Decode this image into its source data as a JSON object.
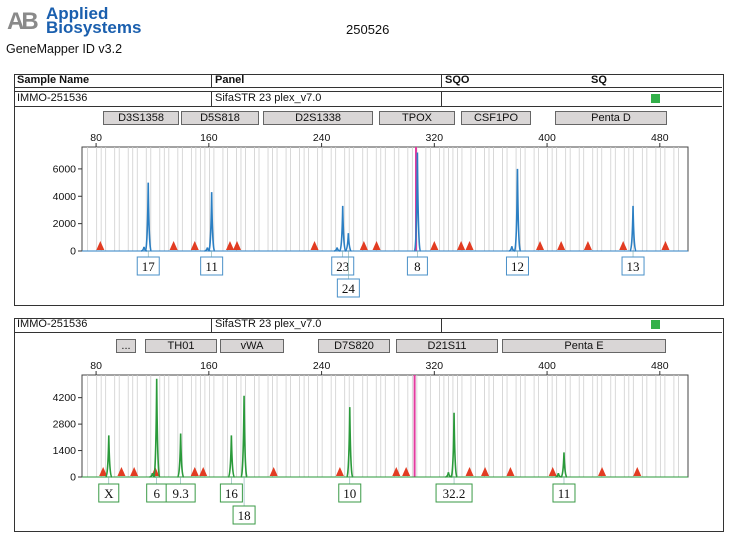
{
  "header": {
    "brand_line1": "Applied",
    "brand_line2": "Biosystems",
    "logo_text": "AB",
    "software": "GeneMapper ID v3.2",
    "run_id": "250526",
    "accent_color": "#1a5fae"
  },
  "table_headers": {
    "sample_name": "Sample Name",
    "panel": "Panel",
    "sqo": "SQO",
    "sq": "SQ"
  },
  "chart_data": [
    {
      "type": "electropherogram",
      "sample": "IMMO-251536",
      "panel": "SifaSTR 23 plex_v7.0",
      "sq_status_color": "#33b04a",
      "dye_color": "#2b7fc3",
      "x_range": [
        70,
        500
      ],
      "x_ticks": [
        80,
        160,
        240,
        320,
        400,
        480
      ],
      "y_range": [
        0,
        7600
      ],
      "y_ticks": [
        0,
        2000,
        4000,
        6000
      ],
      "markers": [
        "D3S1358",
        "D5S818",
        "D2S1338",
        "TPOX",
        "CSF1PO",
        "Penta D"
      ],
      "peaks": [
        {
          "x": 117,
          "height": 5000,
          "allele": "17"
        },
        {
          "x": 114,
          "height": 300,
          "allele": ""
        },
        {
          "x": 162,
          "height": 4300,
          "allele": "11"
        },
        {
          "x": 159,
          "height": 250,
          "allele": ""
        },
        {
          "x": 255,
          "height": 3300,
          "allele": "23"
        },
        {
          "x": 259,
          "height": 1300,
          "allele": "24"
        },
        {
          "x": 251,
          "height": 250,
          "allele": ""
        },
        {
          "x": 308,
          "height": 7200,
          "allele": "8"
        },
        {
          "x": 379,
          "height": 6000,
          "allele": "12"
        },
        {
          "x": 375,
          "height": 350,
          "allele": ""
        },
        {
          "x": 461,
          "height": 3300,
          "allele": "13"
        }
      ],
      "pink_peak_x": 307,
      "size_standard_x": [
        83,
        135,
        150,
        175,
        180,
        235,
        270,
        279,
        320,
        339,
        345,
        395,
        410,
        429,
        454,
        484
      ],
      "allele_labels": [
        "17",
        "11",
        "23",
        "24",
        "8",
        "12",
        "13"
      ]
    },
    {
      "type": "electropherogram",
      "sample": "IMMO-251536",
      "panel": "SifaSTR 23 plex_v7.0",
      "sq_status_color": "#33b04a",
      "dye_color": "#2a9a3a",
      "x_range": [
        70,
        500
      ],
      "x_ticks": [
        80,
        160,
        240,
        320,
        400,
        480
      ],
      "y_range": [
        0,
        5400
      ],
      "y_ticks": [
        0,
        1400,
        2800,
        4200
      ],
      "markers": [
        "...",
        "TH01",
        "vWA",
        "D7S820",
        "D21S11",
        "Penta E"
      ],
      "peaks": [
        {
          "x": 89,
          "height": 2200,
          "allele": "X"
        },
        {
          "x": 123,
          "height": 5200,
          "allele": "6"
        },
        {
          "x": 140,
          "height": 2300,
          "allele": "9.3"
        },
        {
          "x": 176,
          "height": 2200,
          "allele": "16"
        },
        {
          "x": 185,
          "height": 4300,
          "allele": "18"
        },
        {
          "x": 260,
          "height": 3700,
          "allele": "10"
        },
        {
          "x": 334,
          "height": 3400,
          "allele": "32.2"
        },
        {
          "x": 412,
          "height": 1300,
          "allele": "11"
        },
        {
          "x": 330,
          "height": 250,
          "allele": ""
        },
        {
          "x": 408,
          "height": 200,
          "allele": ""
        },
        {
          "x": 120,
          "height": 200,
          "allele": ""
        }
      ],
      "pink_peak_x": 306,
      "size_standard_x": [
        85,
        98,
        107,
        122,
        150,
        156,
        206,
        253,
        293,
        300,
        345,
        356,
        374,
        404,
        439,
        464
      ],
      "allele_labels": [
        "X",
        "6",
        "9.3",
        "16",
        "18",
        "10",
        "32.2",
        "11"
      ]
    }
  ]
}
